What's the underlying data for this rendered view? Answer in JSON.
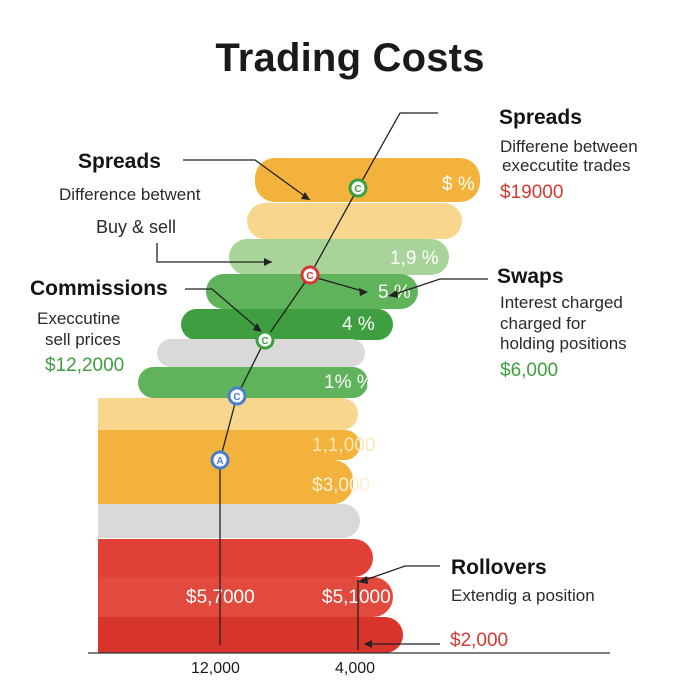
{
  "title": "Trading Costs",
  "colors": {
    "orange": "#f2b23c",
    "light_orange": "#f8d68e",
    "light_green": "#a8d49a",
    "green": "#5fb35a",
    "dark_green": "#3f9e3f",
    "gray": "#d7d7d7",
    "red": "#e04036",
    "dark_red": "#d7342c"
  },
  "left": {
    "spreads": {
      "heading": "Spreads",
      "line1": "Difference betwent",
      "line2": "Buy & sell"
    },
    "commissions": {
      "heading": "Commissions",
      "line1": "Execcutine",
      "line2": "sell prices",
      "value": "$12,2000"
    }
  },
  "right": {
    "spreads": {
      "heading": "Spreads",
      "line1": "Differene between",
      "line2": "execcutite trades",
      "value": "$19000"
    },
    "swaps": {
      "heading": "Swaps",
      "line1": "Interest charged",
      "line2": "charged for",
      "line3": "holding positions",
      "value": "$6,000"
    },
    "rollovers": {
      "heading": "Rollovers",
      "line1": "Extendig a position",
      "value": "$2,000"
    }
  },
  "bar_labels": {
    "top": "$ %",
    "pct1": "1,9 %",
    "pct2": "5 %",
    "pct3": "4 %",
    "pct4": "1% %",
    "amt1": "1,1,000",
    "amt2": "$3,000",
    "amt3": "$5,7000",
    "amt4": "$5,1000"
  },
  "markers": [
    "C",
    "C",
    "C",
    "C",
    "A"
  ],
  "axis": {
    "tick1": "12,000",
    "tick2": "4,000"
  }
}
